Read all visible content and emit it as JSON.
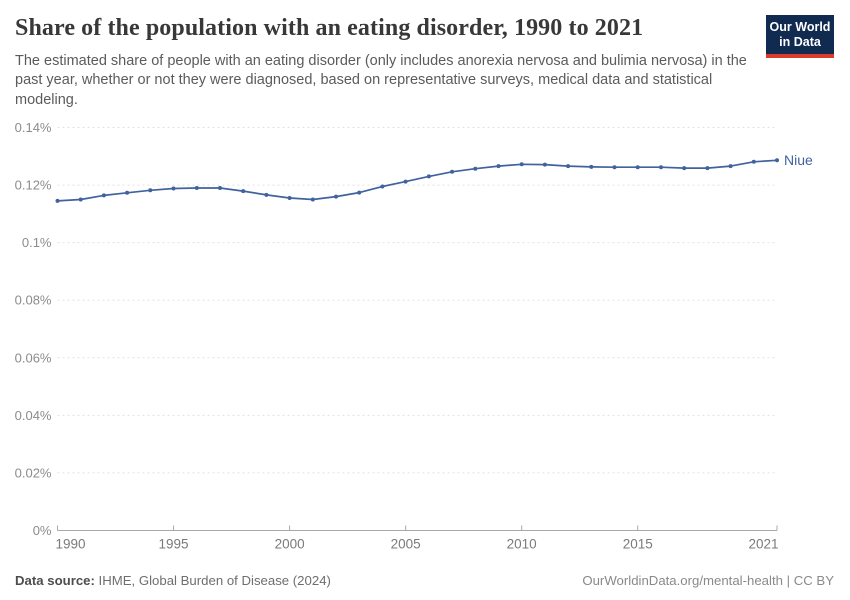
{
  "header": {
    "title": "Share of the population with an eating disorder, 1990 to 2021",
    "subtitle": "The estimated share of people with an eating disorder (only includes anorexia nervosa and bulimia nervosa) in the past year, whether or not they were diagnosed, based on representative surveys, medical data and statistical modeling.",
    "logo": {
      "line1": "Our World",
      "line2": "in Data",
      "bg": "#102a50",
      "accent": "#dc3a2c"
    }
  },
  "chart_data": {
    "type": "line",
    "title": "Share of the population with an eating disorder, 1990 to 2021",
    "xlabel": "",
    "ylabel": "",
    "x": [
      1990,
      1991,
      1992,
      1993,
      1994,
      1995,
      1996,
      1997,
      1998,
      1999,
      2000,
      2001,
      2002,
      2003,
      2004,
      2005,
      2006,
      2007,
      2008,
      2009,
      2010,
      2011,
      2012,
      2013,
      2014,
      2015,
      2016,
      2017,
      2018,
      2019,
      2020,
      2021
    ],
    "series": [
      {
        "name": "Niue",
        "color": "#41629e",
        "values": [
          0.1145,
          0.115,
          0.1164,
          0.1173,
          0.1182,
          0.1188,
          0.119,
          0.119,
          0.1179,
          0.1166,
          0.1155,
          0.115,
          0.116,
          0.1174,
          0.1195,
          0.1212,
          0.123,
          0.1246,
          0.1257,
          0.1266,
          0.1272,
          0.1271,
          0.1266,
          0.1263,
          0.1262,
          0.1262,
          0.1262,
          0.1259,
          0.1259,
          0.1266,
          0.1281,
          0.1286
        ]
      }
    ],
    "unit": "%",
    "ylim": [
      0,
      0.14
    ],
    "yticks": [
      0,
      0.02,
      0.04,
      0.06,
      0.08,
      0.1,
      0.12,
      0.14
    ],
    "ytick_labels": [
      "0%",
      "0.02%",
      "0.04%",
      "0.06%",
      "0.08%",
      "0.1%",
      "0.12%",
      "0.14%"
    ],
    "xticks": [
      1990,
      1995,
      2000,
      2005,
      2010,
      2015,
      2021
    ],
    "grid": "horizontal-dashed",
    "legend": "end-of-line-label",
    "colors": {
      "gridline": "#e1e1e1",
      "axis": "#a8a8a8",
      "ytick_text": "#8c8c8c",
      "xtick_text": "#7a7a7a"
    }
  },
  "footer": {
    "source_label": "Data source:",
    "source_text": " IHME, Global Burden of Disease (2024)",
    "credit": "OurWorldinData.org/mental-health | CC BY"
  }
}
